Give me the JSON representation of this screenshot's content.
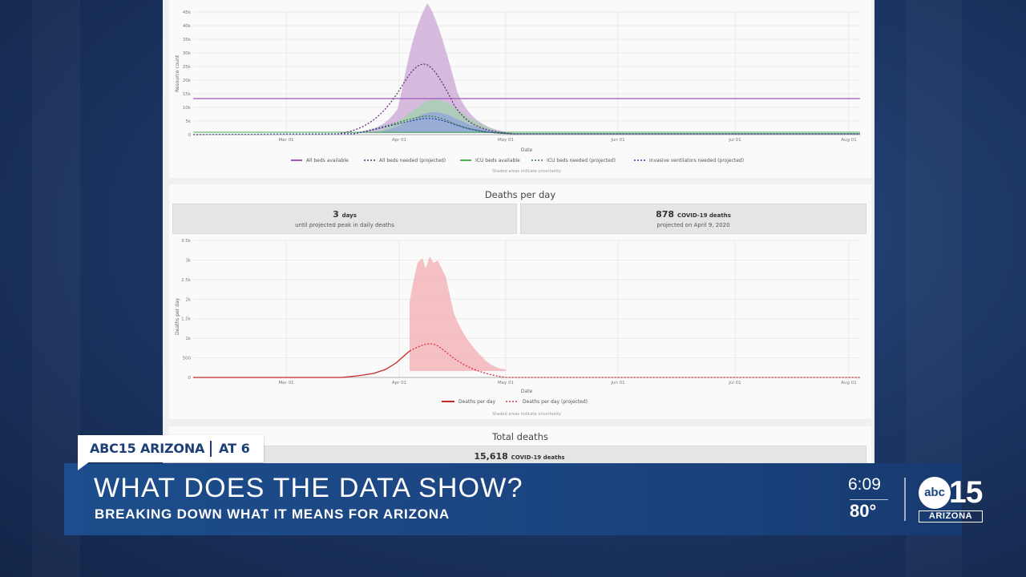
{
  "colors": {
    "all_beds": "#9b59b6",
    "icu": "#4caf50",
    "ventilators": "#3b4cc0",
    "deaths": "#d32f3f",
    "news_blue": "#1b4480"
  },
  "resource_chart": {
    "ylabel": "Resource count",
    "xlabel": "Date",
    "yticks": [
      "0",
      "5k",
      "10k",
      "15k",
      "20k",
      "25k",
      "30k",
      "35k",
      "40k",
      "45k"
    ],
    "xticks": [
      "Mar 01",
      "Apr 01",
      "May 01",
      "Jun 01",
      "Jul 01",
      "Aug 01"
    ],
    "legend": [
      "All beds available",
      "All beds needed (projected)",
      "ICU beds available",
      "ICU beds needed (projected)",
      "Invasive ventilators needed (projected)"
    ],
    "note": "Shaded areas indicate uncertainty"
  },
  "deaths_panel": {
    "title": "Deaths per day",
    "peak_days_value": "3",
    "peak_days_unit": "days",
    "peak_days_sub": "until projected peak in daily deaths",
    "peak_deaths_value": "878",
    "peak_deaths_unit": "COVID-19 deaths",
    "peak_deaths_sub": "projected on April 9, 2020"
  },
  "deaths_chart": {
    "ylabel": "Deaths per day",
    "xlabel": "Date",
    "yticks": [
      "0",
      "500",
      "1k",
      "1.5k",
      "2k",
      "2.5k",
      "3k",
      "3.5k"
    ],
    "xticks": [
      "Mar 01",
      "Apr 01",
      "May 01",
      "Jun 01",
      "Jul 01",
      "Aug 01"
    ],
    "legend": [
      "Deaths per day",
      "Deaths per day (projected)"
    ],
    "note": "Shaded areas indicate uncertainty"
  },
  "total_panel": {
    "title": "Total deaths",
    "value": "15,618",
    "unit": "COVID-19 deaths"
  },
  "chart_data": [
    {
      "type": "area",
      "ylabel": "Resource count",
      "xlabel": "Date",
      "ylim": [
        0,
        47000
      ],
      "x_range": [
        "2020-02-06",
        "2020-08-04"
      ],
      "all_beds_available": 13000,
      "all_beds_needed_peak": {
        "date": "2020-04-10",
        "value": 25500
      },
      "all_beds_upper_peak": 47000,
      "icu_needed_peak": 6500,
      "ventilators_needed_peak": 5500
    },
    {
      "type": "line",
      "ylabel": "Deaths per day",
      "xlabel": "Date",
      "ylim": [
        0,
        3500
      ],
      "x_range": [
        "2020-02-06",
        "2020-08-04"
      ],
      "peak": {
        "date": "2020-04-09",
        "value": 878
      },
      "upper_peak": 3100
    }
  ],
  "overlay": {
    "brand": "ABC15 ARIZONA",
    "time_slot": "AT 6",
    "headline": "WHAT DOES THE DATA SHOW?",
    "subline": "BREAKING DOWN WHAT IT MEANS FOR ARIZONA",
    "clock": "6:09",
    "temperature": "80°",
    "logo_abc": "abc",
    "logo_number": "15",
    "logo_state": "ARIZONA"
  }
}
